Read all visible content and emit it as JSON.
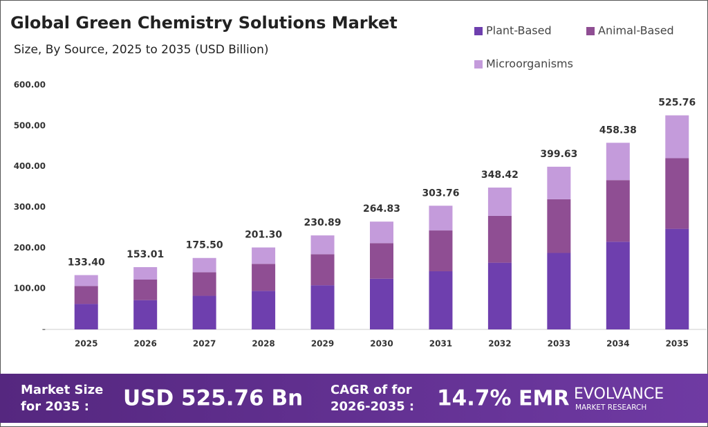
{
  "chart_data": {
    "type": "stacked-bar",
    "title": "Global Green Chemistry Solutions Market",
    "subtitle": "Size, By Source, 2025 to 2035 (USD Billion)",
    "categories": [
      "2025",
      "2026",
      "2027",
      "2028",
      "2029",
      "2030",
      "2031",
      "2032",
      "2033",
      "2034",
      "2035"
    ],
    "series": [
      {
        "name": "Plant-Based",
        "color": "#6e3fae",
        "values": [
          62.7,
          71.9,
          82.5,
          94.6,
          108.5,
          124.5,
          142.8,
          163.8,
          187.8,
          215.4,
          247.1
        ]
      },
      {
        "name": "Animal-Based",
        "color": "#8f4e93",
        "values": [
          44.0,
          50.5,
          57.9,
          66.4,
          76.2,
          87.4,
          100.2,
          115.0,
          131.9,
          151.3,
          173.5
        ]
      },
      {
        "name": "Microorganisms",
        "color": "#c49bdb",
        "values": [
          26.7,
          30.6,
          35.1,
          40.3,
          46.2,
          52.9,
          60.8,
          69.6,
          79.9,
          91.7,
          105.2
        ]
      }
    ],
    "totals": [
      133.4,
      153.01,
      175.5,
      201.3,
      230.89,
      264.83,
      303.76,
      348.42,
      399.63,
      458.38,
      525.76
    ],
    "total_labels": [
      "133.40",
      "153.01",
      "175.50",
      "201.30",
      "230.89",
      "264.83",
      "303.76",
      "348.42",
      "399.63",
      "458.38",
      "525.76"
    ],
    "ylim": [
      0,
      600
    ],
    "yticks": [
      {
        "value": 0,
        "label": "-"
      },
      {
        "value": 100,
        "label": "100.00"
      },
      {
        "value": 200,
        "label": "200.00"
      },
      {
        "value": 300,
        "label": "300.00"
      },
      {
        "value": 400,
        "label": "400.00"
      },
      {
        "value": 500,
        "label": "500.00"
      },
      {
        "value": 600,
        "label": "600.00"
      }
    ],
    "grid": false
  },
  "footer": {
    "market_size_label": [
      "Market Size",
      "for 2035 :"
    ],
    "market_size_value": "USD 525.76 Bn",
    "cagr_label": [
      "CAGR of for",
      "2026-2035 :"
    ],
    "cagr_value": "14.7%",
    "logo_mark": "EMR",
    "logo_name": "EVOLVANCE",
    "logo_tagline": "MARKET RESEARCH"
  }
}
